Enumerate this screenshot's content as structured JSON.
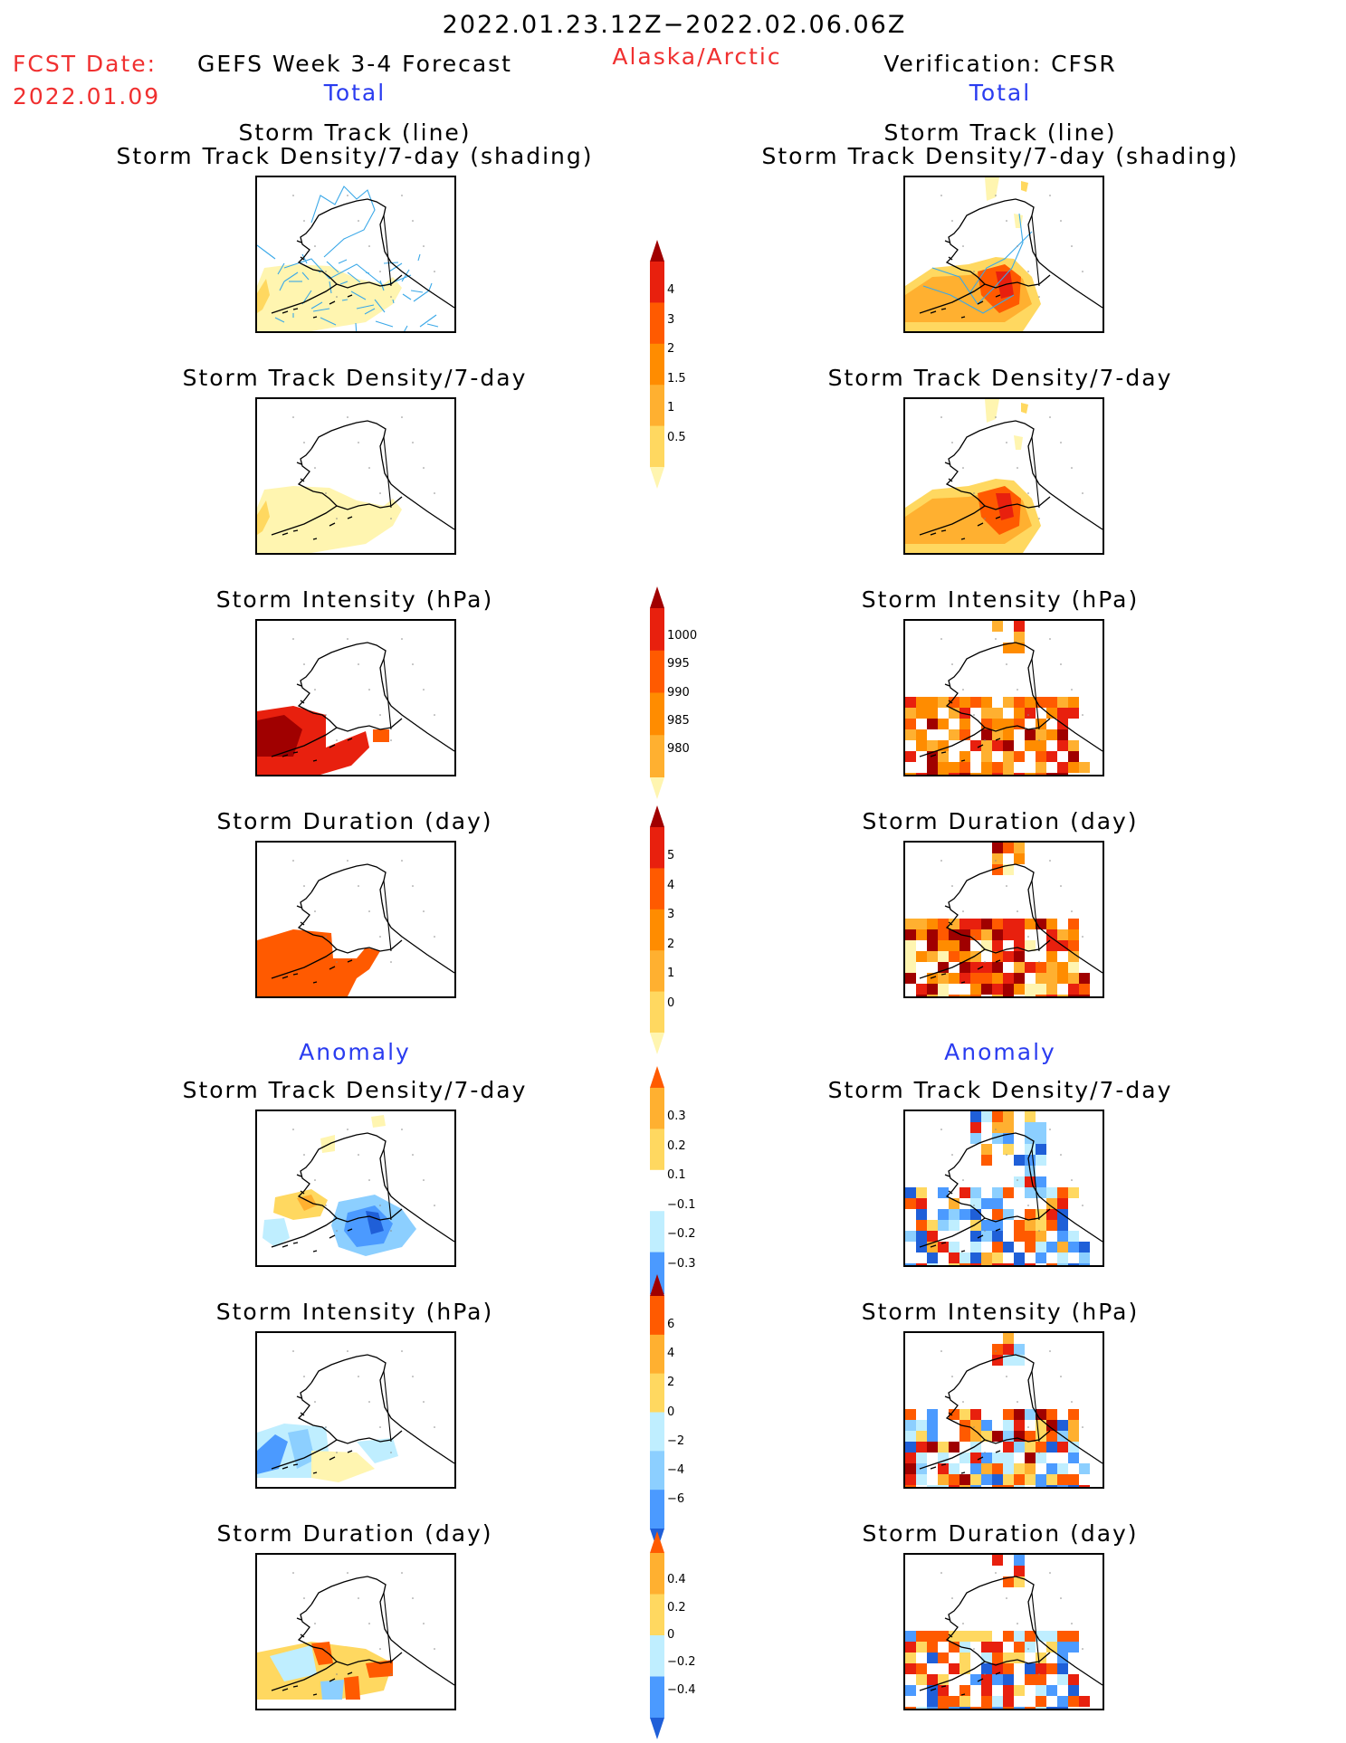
{
  "header": {
    "date_range": "2022.01.23.12Z−2022.02.06.06Z",
    "fcst_label": "FCST Date:",
    "fcst_date": "2022.01.09",
    "model": "GEFS Week 3-4 Forecast",
    "region": "Alaska/Arctic",
    "verification": "Verification: CFSR",
    "left_total": "Total",
    "right_total": "Total",
    "left_anomaly": "Anomaly",
    "right_anomaly": "Anomaly"
  },
  "panels": {
    "track_line": "Storm Track (line)",
    "track_shading": "Storm Track Density/7-day (shading)",
    "density": "Storm Track Density/7-day",
    "intensity": "Storm Intensity (hPa)",
    "duration": "Storm Duration (day)"
  },
  "colors": {
    "pale_yellow": "#fff5b0",
    "yellow": "#ffd860",
    "light_orange": "#ffb030",
    "orange": "#ff8c00",
    "dark_orange": "#ff5a00",
    "red": "#e8200e",
    "dark_red": "#a00000",
    "pale_blue": "#bfeeff",
    "light_blue": "#8ccfff",
    "blue": "#4b9aff",
    "dark_blue": "#1f5fd8",
    "track_line": "#3aa8e8"
  },
  "chart_data": [
    {
      "type": "heatmap",
      "name": "total_density_scale",
      "levels": [
        "0.5",
        "1",
        "1.5",
        "2",
        "3",
        "4"
      ]
    },
    {
      "type": "heatmap",
      "name": "total_intensity_scale",
      "levels": [
        "1000",
        "995",
        "990",
        "985",
        "980"
      ]
    },
    {
      "type": "heatmap",
      "name": "total_duration_scale",
      "levels": [
        "0",
        "1",
        "2",
        "3",
        "4",
        "5"
      ]
    },
    {
      "type": "heatmap",
      "name": "anomaly_density_scale",
      "levels": [
        "0.3",
        "0.2",
        "0.1",
        "−0.1",
        "−0.2",
        "−0.3"
      ]
    },
    {
      "type": "heatmap",
      "name": "anomaly_intensity_scale",
      "levels": [
        "6",
        "4",
        "2",
        "0",
        "−2",
        "−4",
        "−6"
      ]
    },
    {
      "type": "heatmap",
      "name": "anomaly_duration_scale",
      "levels": [
        "0.4",
        "0.2",
        "0",
        "−0.2",
        "−0.4"
      ]
    }
  ]
}
